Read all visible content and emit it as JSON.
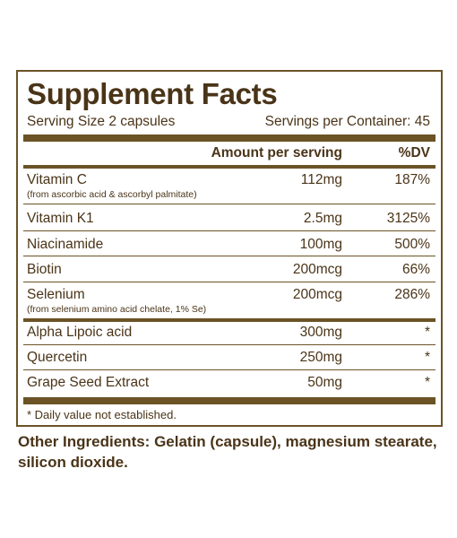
{
  "title": "Supplement Facts",
  "serving_size": "Serving Size 2 capsules",
  "servings_per_container": "Servings per Container: 45",
  "header": {
    "amount": "Amount per serving",
    "dv": "%DV"
  },
  "rows": [
    {
      "name": "Vitamin C",
      "sub": "(from ascorbic acid & ascorbyl palmitate)",
      "amount": "112mg",
      "dv": "187%"
    },
    {
      "name": "Vitamin K1",
      "sub": "",
      "amount": "2.5mg",
      "dv": "3125%"
    },
    {
      "name": "Niacinamide",
      "sub": "",
      "amount": "100mg",
      "dv": "500%"
    },
    {
      "name": "Biotin",
      "sub": "",
      "amount": "200mcg",
      "dv": "66%"
    },
    {
      "name": "Selenium",
      "sub": "(from selenium amino acid chelate, 1% Se)",
      "amount": "200mcg",
      "dv": "286%"
    },
    {
      "name": "Alpha Lipoic acid",
      "sub": "",
      "amount": "300mg",
      "dv": "*"
    },
    {
      "name": "Quercetin",
      "sub": "",
      "amount": "250mg",
      "dv": "*"
    },
    {
      "name": "Grape Seed Extract",
      "sub": "",
      "amount": "50mg",
      "dv": "*"
    }
  ],
  "footnote": "* Daily value not established.",
  "other_ingredients": "Other Ingredients: Gelatin (capsule), magnesium stearate, silicon dioxide.",
  "colors": {
    "text": "#4a3418",
    "rule": "#6b5326",
    "background": "#ffffff"
  }
}
